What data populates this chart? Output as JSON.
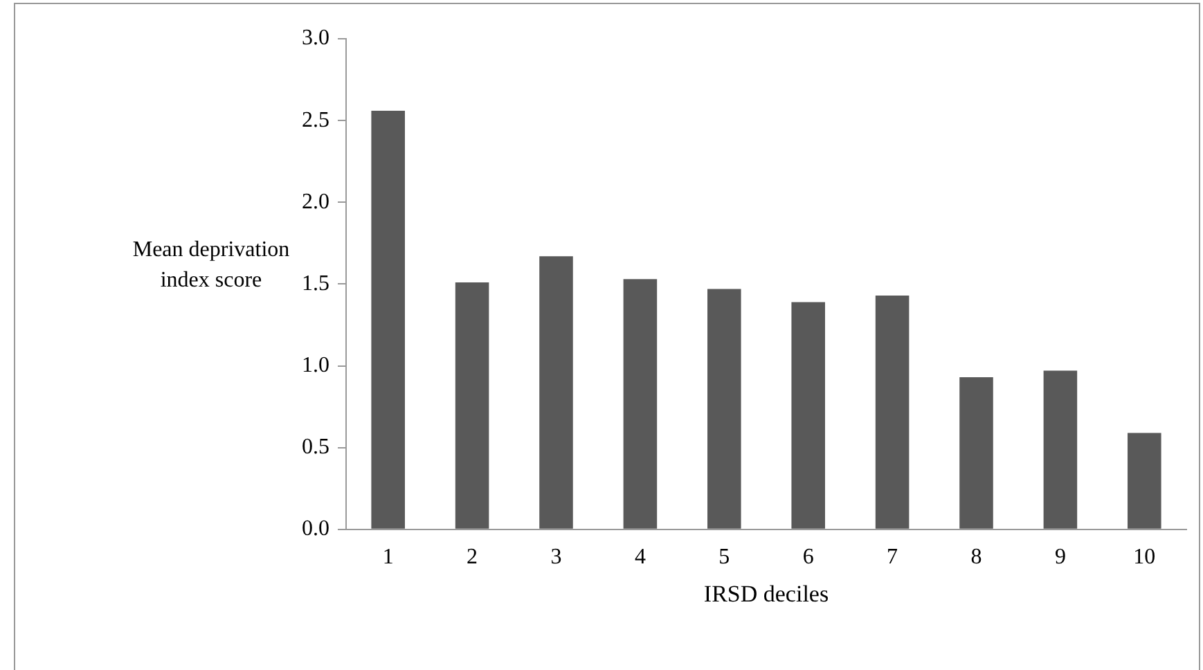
{
  "chart_data": {
    "type": "bar",
    "xlabel": "IRSD deciles",
    "ylabel": "Mean deprivation index score",
    "categories": [
      "1",
      "2",
      "3",
      "4",
      "5",
      "6",
      "7",
      "8",
      "9",
      "10"
    ],
    "values": [
      2.56,
      1.51,
      1.67,
      1.53,
      1.47,
      1.39,
      1.43,
      0.93,
      0.97,
      0.59
    ],
    "color": "#595959",
    "ylim": [
      0,
      3
    ],
    "yticks": [
      {
        "value": 0,
        "label": "0.0"
      },
      {
        "value": 0.5,
        "label": "0.5"
      },
      {
        "value": 1,
        "label": "1.0"
      },
      {
        "value": 1.5,
        "label": "1.5"
      },
      {
        "value": 2,
        "label": "2.0"
      },
      {
        "value": 2.5,
        "label": "2.5"
      },
      {
        "value": 3,
        "label": "3.0"
      }
    ],
    "grid": false,
    "legend": false
  }
}
